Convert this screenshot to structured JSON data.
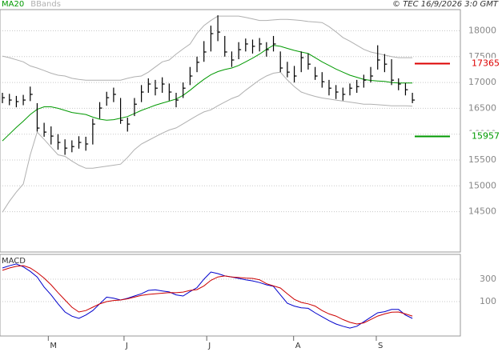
{
  "chart_data": [
    {
      "type": "ohlc",
      "footer": "© TEC 16/9/2026 3:0 GMT",
      "ylim": [
        13720,
        18410
      ],
      "xlim": [
        -0.35,
        65.9
      ],
      "yticks": [
        14500,
        15000,
        15500,
        16000,
        16500,
        17000,
        17500,
        18000
      ],
      "grid": true,
      "bar_color": "#000000",
      "close": [
        16706,
        16660,
        16630,
        16660,
        16770,
        16118,
        16040,
        15963,
        15840,
        15730,
        15760,
        15840,
        15810,
        16195,
        16505,
        16706,
        16770,
        16270,
        16195,
        16580,
        16815,
        16970,
        16890,
        16970,
        16815,
        16660,
        16890,
        17125,
        17390,
        17590,
        17945,
        17975,
        17590,
        17435,
        17635,
        17745,
        17700,
        17745,
        17635,
        17745,
        17280,
        17200,
        17125,
        17480,
        17355,
        17125,
        17015,
        16890,
        16815,
        16770,
        16890,
        16920,
        17045,
        17125,
        17435,
        17355,
        17045,
        16970,
        16860,
        16660
      ],
      "high": [
        16800,
        16780,
        16740,
        16760,
        16920,
        16600,
        16220,
        16150,
        16000,
        15900,
        15880,
        15960,
        15950,
        16300,
        16620,
        16820,
        16900,
        16700,
        16320,
        16700,
        16950,
        17080,
        17050,
        17100,
        16980,
        16800,
        17000,
        17300,
        17500,
        17800,
        18100,
        18300,
        17900,
        17600,
        17780,
        17850,
        17830,
        17860,
        17780,
        17900,
        17600,
        17400,
        17320,
        17600,
        17560,
        17300,
        17200,
        17050,
        16950,
        16900,
        16980,
        17050,
        17150,
        17300,
        17720,
        17550,
        17450,
        17080,
        16990,
        16800
      ],
      "low": [
        16600,
        16560,
        16520,
        16560,
        16640,
        16050,
        15950,
        15800,
        15700,
        15600,
        15650,
        15720,
        15680,
        15800,
        16300,
        16550,
        16620,
        16200,
        16050,
        16350,
        16620,
        16800,
        16750,
        16800,
        16650,
        16520,
        16700,
        16950,
        17200,
        17400,
        17600,
        17800,
        17500,
        17300,
        17450,
        17600,
        17560,
        17600,
        17500,
        17600,
        17200,
        17100,
        17000,
        17200,
        17250,
        17050,
        16900,
        16750,
        16680,
        16650,
        16750,
        16800,
        16900,
        17000,
        17250,
        17200,
        16950,
        16850,
        16750,
        16600
      ],
      "series": [
        {
          "name": "MA20",
          "color": "#009900",
          "values": [
            15870,
            16000,
            16130,
            16250,
            16380,
            16480,
            16530,
            16530,
            16500,
            16460,
            16420,
            16400,
            16380,
            16330,
            16290,
            16270,
            16280,
            16310,
            16340,
            16400,
            16460,
            16510,
            16560,
            16600,
            16640,
            16680,
            16750,
            16850,
            16960,
            17060,
            17150,
            17210,
            17250,
            17280,
            17330,
            17400,
            17470,
            17550,
            17640,
            17720,
            17700,
            17660,
            17620,
            17590,
            17560,
            17480,
            17400,
            17330,
            17260,
            17200,
            17140,
            17100,
            17060,
            17040,
            17030,
            17020,
            17000,
            16990,
            16990,
            16990
          ]
        },
        {
          "name": "BBands",
          "color": "#b0b0b0",
          "upper": [
            17510,
            17480,
            17440,
            17400,
            17320,
            17280,
            17230,
            17180,
            17140,
            17125,
            17080,
            17060,
            17045,
            17045,
            17045,
            17045,
            17045,
            17045,
            17080,
            17110,
            17125,
            17200,
            17300,
            17400,
            17435,
            17550,
            17650,
            17745,
            17950,
            18100,
            18200,
            18285,
            18285,
            18285,
            18285,
            18260,
            18230,
            18200,
            18200,
            18210,
            18220,
            18220,
            18210,
            18200,
            18180,
            18170,
            18160,
            18080,
            17980,
            17870,
            17800,
            17720,
            17640,
            17590,
            17560,
            17530,
            17500,
            17480,
            17480,
            17480
          ],
          "lower": [
            14490,
            14700,
            14880,
            15035,
            15600,
            16040,
            15900,
            15750,
            15600,
            15570,
            15480,
            15400,
            15340,
            15340,
            15360,
            15380,
            15400,
            15420,
            15550,
            15700,
            15810,
            15880,
            15950,
            16020,
            16080,
            16120,
            16200,
            16280,
            16360,
            16430,
            16470,
            16550,
            16620,
            16690,
            16740,
            16850,
            16950,
            17050,
            17125,
            17180,
            17200,
            17050,
            16920,
            16815,
            16770,
            16730,
            16700,
            16680,
            16660,
            16640,
            16620,
            16600,
            16580,
            16580,
            16570,
            16560,
            16550,
            16550,
            16550,
            16540
          ]
        }
      ],
      "levels": [
        {
          "value": 17365,
          "color": "#dd0000"
        },
        {
          "value": 15957,
          "color": "#009900"
        }
      ]
    },
    {
      "type": "line",
      "title": "MACD",
      "ylim": [
        -207,
        521
      ],
      "xlim": [
        -0.35,
        65.9
      ],
      "yticks": [
        100,
        300
      ],
      "grid": true,
      "xticks": [
        {
          "value": 6.6,
          "label": "M"
        },
        {
          "value": 17.5,
          "label": "J"
        },
        {
          "value": 29.4,
          "label": "J"
        },
        {
          "value": 41.9,
          "label": "A"
        },
        {
          "value": 53.8,
          "label": "S"
        }
      ],
      "series": [
        {
          "color": "#0000cc",
          "values": [
            400,
            420,
            436,
            410,
            370,
            320,
            230,
            160,
            80,
            7,
            -30,
            -50,
            -20,
            20,
            80,
            140,
            130,
            114,
            130,
            150,
            170,
            200,
            205,
            195,
            186,
            160,
            150,
            190,
            225,
            300,
            364,
            350,
            329,
            320,
            307,
            295,
            285,
            270,
            250,
            236,
            160,
            85,
            60,
            45,
            40,
            0,
            -35,
            -70,
            -100,
            -120,
            -136,
            -120,
            -80,
            -40,
            0,
            10,
            30,
            30,
            -20,
            -50
          ]
        },
        {
          "color": "#cc0000",
          "values": [
            379,
            400,
            415,
            421,
            400,
            360,
            310,
            250,
            180,
            114,
            50,
            7,
            20,
            50,
            79,
            100,
            110,
            114,
            125,
            140,
            155,
            164,
            170,
            175,
            180,
            179,
            185,
            200,
            207,
            240,
            290,
            320,
            329,
            320,
            315,
            310,
            307,
            295,
            260,
            240,
            221,
            170,
            120,
            93,
            80,
            60,
            20,
            -10,
            -29,
            -60,
            -85,
            -100,
            -90,
            -60,
            -29,
            -10,
            5,
            7,
            -10,
            -29
          ]
        }
      ]
    }
  ]
}
